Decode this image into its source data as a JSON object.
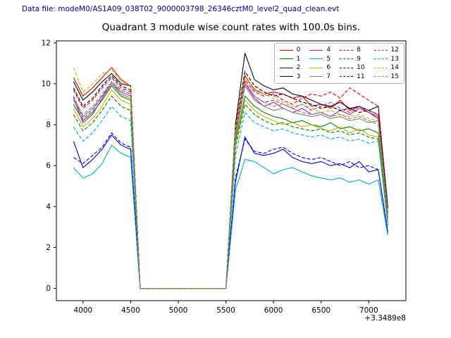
{
  "header": {
    "data_file_label": "Data file: modeM0/AS1A09_038T02_9000003798_26346cztM0_level2_quad_clean.evt"
  },
  "colors": {
    "header_text": "#00008b",
    "axes": "#000000",
    "legend_border": "#b3b3b3"
  },
  "chart_data": {
    "type": "line",
    "title": "Quadrant 3 module wise count rates with 100.0s bins.",
    "xlabel": "",
    "ylabel": "",
    "x_offset_label": "+3.3489e8",
    "xlim": [
      3720,
      7390
    ],
    "ylim": [
      -0.6,
      12.1
    ],
    "xticks": [
      4000,
      4500,
      5000,
      5500,
      6000,
      6500,
      7000
    ],
    "yticks": [
      0,
      2,
      4,
      6,
      8,
      10,
      12
    ],
    "grid": false,
    "legend_position": "upper right",
    "legend_columns": 4,
    "x": [
      3900,
      4000,
      4100,
      4200,
      4300,
      4400,
      4500,
      4600,
      4700,
      4800,
      4900,
      5000,
      5100,
      5200,
      5300,
      5400,
      5500,
      5600,
      5700,
      5800,
      5900,
      6000,
      6100,
      6200,
      6300,
      6400,
      6500,
      6600,
      6700,
      6800,
      6900,
      7000,
      7100,
      7200
    ],
    "series": [
      {
        "name": "0",
        "color": "#e60000",
        "dash": false,
        "values": [
          10.3,
          9.4,
          9.8,
          10.3,
          10.8,
          10.2,
          9.9,
          0,
          0,
          0,
          0,
          0,
          0,
          0,
          0,
          0,
          0,
          7.8,
          10.4,
          9.7,
          9.5,
          9.6,
          9.5,
          9.3,
          9.4,
          8.9,
          9.0,
          8.8,
          9.2,
          8.7,
          8.9,
          8.6,
          8.3,
          3.9
        ]
      },
      {
        "name": "1",
        "color": "#008000",
        "dash": false,
        "values": [
          9.0,
          8.2,
          8.6,
          9.2,
          9.9,
          9.4,
          9.2,
          0,
          0,
          0,
          0,
          0,
          0,
          0,
          0,
          0,
          0,
          7.2,
          9.4,
          8.9,
          8.6,
          8.4,
          8.3,
          8.1,
          8.2,
          8.0,
          7.9,
          8.1,
          7.8,
          7.9,
          7.7,
          7.8,
          7.6,
          3.4
        ]
      },
      {
        "name": "2",
        "color": "#0000dd",
        "dash": false,
        "values": [
          7.2,
          5.9,
          6.3,
          6.8,
          7.5,
          7.0,
          6.8,
          0,
          0,
          0,
          0,
          0,
          0,
          0,
          0,
          0,
          0,
          5.2,
          7.4,
          6.6,
          6.5,
          6.6,
          6.8,
          6.4,
          6.2,
          6.1,
          6.2,
          6.0,
          6.1,
          5.9,
          6.2,
          5.7,
          5.8,
          2.7
        ]
      },
      {
        "name": "3",
        "color": "#000000",
        "dash": false,
        "values": [
          10.1,
          9.2,
          9.6,
          10.1,
          10.5,
          10.0,
          9.9,
          0,
          0,
          0,
          0,
          0,
          0,
          0,
          0,
          0,
          0,
          8.0,
          11.5,
          10.2,
          9.9,
          9.7,
          9.8,
          9.5,
          9.4,
          9.2,
          9.0,
          8.9,
          9.1,
          8.8,
          8.9,
          8.7,
          8.9,
          4.0
        ]
      },
      {
        "name": "4",
        "color": "#aa22aa",
        "dash": false,
        "values": [
          9.3,
          8.1,
          8.5,
          9.3,
          10.0,
          9.6,
          9.4,
          0,
          0,
          0,
          0,
          0,
          0,
          0,
          0,
          0,
          0,
          7.5,
          10.0,
          9.3,
          8.9,
          9.1,
          8.8,
          8.6,
          8.8,
          8.5,
          8.6,
          8.4,
          8.7,
          8.5,
          8.8,
          8.6,
          8.4,
          3.7
        ]
      },
      {
        "name": "5",
        "color": "#00b2b2",
        "dash": false,
        "values": [
          5.9,
          5.4,
          5.6,
          6.1,
          7.0,
          6.6,
          6.4,
          0,
          0,
          0,
          0,
          0,
          0,
          0,
          0,
          0,
          0,
          4.8,
          6.3,
          6.2,
          5.9,
          5.6,
          5.8,
          5.9,
          5.7,
          5.5,
          5.4,
          5.3,
          5.4,
          5.2,
          5.3,
          5.1,
          5.3,
          2.6
        ]
      },
      {
        "name": "6",
        "color": "#c8b400",
        "dash": false,
        "values": [
          8.8,
          7.9,
          8.3,
          8.9,
          9.7,
          9.2,
          9.0,
          0,
          0,
          0,
          0,
          0,
          0,
          0,
          0,
          0,
          0,
          7.0,
          9.2,
          8.7,
          8.4,
          8.2,
          8.0,
          8.1,
          7.9,
          8.0,
          7.8,
          7.7,
          7.9,
          7.6,
          7.8,
          7.5,
          7.4,
          3.3
        ]
      },
      {
        "name": "7",
        "color": "#7f7f7f",
        "dash": false,
        "values": [
          9.2,
          8.4,
          8.8,
          9.4,
          10.0,
          9.5,
          9.3,
          0,
          0,
          0,
          0,
          0,
          0,
          0,
          0,
          0,
          0,
          7.4,
          9.9,
          9.2,
          8.9,
          8.7,
          8.8,
          8.6,
          8.5,
          8.4,
          8.5,
          8.3,
          8.4,
          8.2,
          8.3,
          8.1,
          8.2,
          3.6
        ]
      },
      {
        "name": "8",
        "color": "#e60000",
        "dash": true,
        "values": [
          9.7,
          8.8,
          9.2,
          9.8,
          10.3,
          9.8,
          9.6,
          0,
          0,
          0,
          0,
          0,
          0,
          0,
          0,
          0,
          0,
          7.7,
          10.2,
          9.6,
          9.4,
          9.5,
          9.2,
          9.0,
          9.3,
          9.5,
          9.4,
          9.6,
          9.3,
          9.8,
          9.5,
          9.2,
          8.9,
          3.8
        ]
      },
      {
        "name": "9",
        "color": "#008000",
        "dash": true,
        "values": [
          8.5,
          7.7,
          8.1,
          8.7,
          9.4,
          8.9,
          8.7,
          0,
          0,
          0,
          0,
          0,
          0,
          0,
          0,
          0,
          0,
          6.9,
          9.0,
          8.5,
          8.2,
          8.0,
          8.1,
          7.9,
          7.8,
          7.7,
          7.8,
          7.6,
          7.7,
          7.5,
          7.6,
          7.4,
          7.3,
          3.2
        ]
      },
      {
        "name": "10",
        "color": "#0000dd",
        "dash": true,
        "values": [
          6.4,
          6.1,
          6.5,
          6.9,
          7.6,
          7.1,
          6.9,
          0,
          0,
          0,
          0,
          0,
          0,
          0,
          0,
          0,
          0,
          5.4,
          7.3,
          6.7,
          6.6,
          6.8,
          6.9,
          6.6,
          6.4,
          6.3,
          6.4,
          6.2,
          6.0,
          6.2,
          5.9,
          6.0,
          5.8,
          2.8
        ]
      },
      {
        "name": "11",
        "color": "#000000",
        "dash": true,
        "values": [
          9.8,
          8.9,
          9.3,
          9.9,
          10.4,
          9.9,
          9.7,
          0,
          0,
          0,
          0,
          0,
          0,
          0,
          0,
          0,
          0,
          7.9,
          10.6,
          9.9,
          9.6,
          9.4,
          9.5,
          9.3,
          9.1,
          9.0,
          8.8,
          8.9,
          8.7,
          8.8,
          8.6,
          8.7,
          8.5,
          3.9
        ]
      },
      {
        "name": "12",
        "color": "#aa22aa",
        "dash": true,
        "values": [
          9.4,
          8.3,
          8.7,
          9.4,
          10.1,
          9.7,
          9.5,
          0,
          0,
          0,
          0,
          0,
          0,
          0,
          0,
          0,
          0,
          7.6,
          10.1,
          9.4,
          9.1,
          9.2,
          9.0,
          8.8,
          9.0,
          8.7,
          8.9,
          9.1,
          8.8,
          8.6,
          8.9,
          8.7,
          8.5,
          3.7
        ]
      },
      {
        "name": "13",
        "color": "#00b2b2",
        "dash": true,
        "values": [
          7.9,
          7.2,
          7.6,
          8.2,
          8.9,
          8.4,
          8.2,
          0,
          0,
          0,
          0,
          0,
          0,
          0,
          0,
          0,
          0,
          6.5,
          8.6,
          8.1,
          7.9,
          7.7,
          7.8,
          7.6,
          7.5,
          7.4,
          7.5,
          7.3,
          7.4,
          7.2,
          7.3,
          7.1,
          7.2,
          3.1
        ]
      },
      {
        "name": "14",
        "color": "#c8b400",
        "dash": true,
        "values": [
          10.8,
          9.6,
          10.0,
          10.5,
          10.7,
          10.1,
          9.9,
          0,
          0,
          0,
          0,
          0,
          0,
          0,
          0,
          0,
          0,
          7.9,
          10.3,
          9.8,
          9.5,
          9.3,
          9.1,
          8.9,
          9.0,
          8.8,
          8.6,
          8.7,
          8.5,
          8.4,
          8.5,
          8.3,
          8.2,
          3.7
        ]
      },
      {
        "name": "15",
        "color": "#7f7f7f",
        "dash": true,
        "values": [
          9.3,
          8.5,
          8.9,
          9.5,
          10.1,
          9.6,
          9.4,
          0,
          0,
          0,
          0,
          0,
          0,
          0,
          0,
          0,
          0,
          7.5,
          10.0,
          9.4,
          9.1,
          8.9,
          9.0,
          8.8,
          8.6,
          8.5,
          8.6,
          8.4,
          8.5,
          8.3,
          8.4,
          8.2,
          8.0,
          3.6
        ]
      }
    ]
  }
}
